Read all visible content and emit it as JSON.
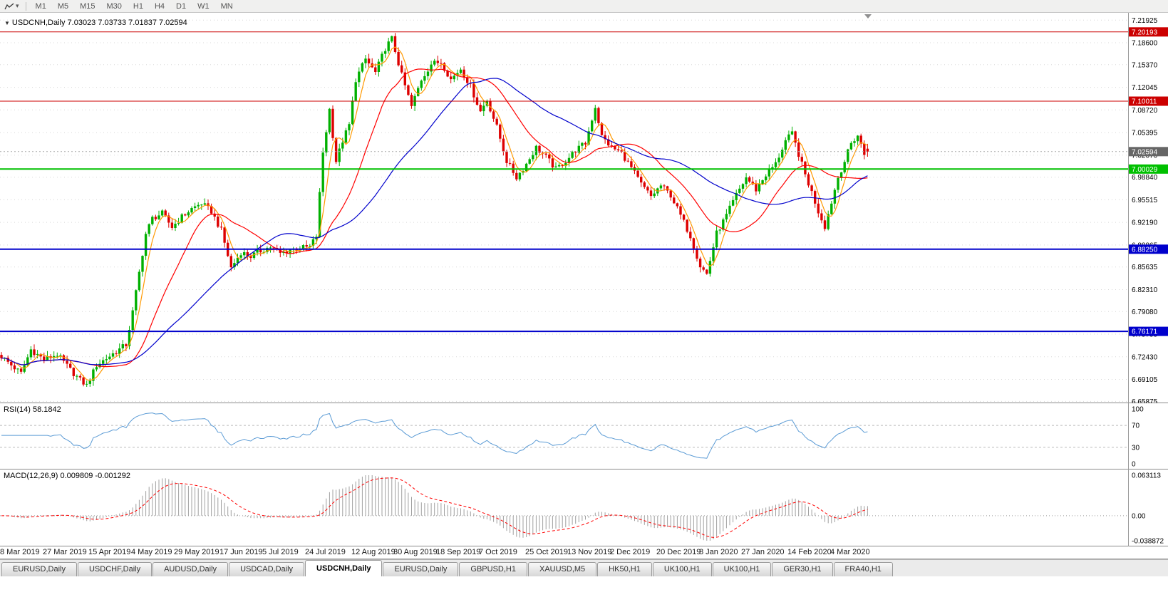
{
  "toolbar": {
    "timeframes": [
      "M1",
      "M5",
      "M15",
      "M30",
      "H1",
      "H4",
      "D1",
      "W1",
      "MN"
    ]
  },
  "chart": {
    "title": "USDCNH,Daily 7.03023 7.03733 7.01837 7.02594",
    "rsi_label": "RSI(14) 58.1842",
    "macd_label": "MACD(12,26,9) 0.009809 -0.001292"
  },
  "tabs": {
    "items": [
      "EURUSD,Daily",
      "USDCHF,Daily",
      "AUDUSD,Daily",
      "USDCAD,Daily",
      "USDCNH,Daily",
      "EURUSD,Daily",
      "GBPUSD,H1",
      "XAUUSD,M5",
      "HK50,H1",
      "UK100,H1",
      "UK100,H1",
      "GER30,H1",
      "FRA40,H1"
    ],
    "active_index": 4
  },
  "chart_data": {
    "type": "candlestick",
    "symbol": "USDCNH",
    "period": "Daily",
    "ohlc": {
      "open": 7.03023,
      "high": 7.03733,
      "low": 7.01837,
      "close": 7.02594
    },
    "bar_count": 265,
    "price_axis": {
      "top": 7.23,
      "bottom": 6.656,
      "labels": [
        "7.21925",
        "7.18600",
        "7.15370",
        "7.12045",
        "7.08720",
        "7.05395",
        "7.02070",
        "6.98840",
        "6.95515",
        "6.92190",
        "6.88865",
        "6.85635",
        "6.82310",
        "6.79080",
        "6.75755",
        "6.72430",
        "6.69105",
        "6.65875"
      ]
    },
    "hlines": [
      {
        "label": "7.20193",
        "value": 7.20193,
        "color": "#cc0000",
        "width": 1
      },
      {
        "label": "7.10011",
        "value": 7.10011,
        "color": "#cc0000",
        "width": 1
      },
      {
        "label": "7.00029",
        "value": 7.00029,
        "color": "#00c000",
        "width": 2
      },
      {
        "label": "6.88250",
        "value": 6.8825,
        "color": "#0000cc",
        "width": 2
      },
      {
        "label": "6.76171",
        "value": 6.76171,
        "color": "#0000cc",
        "width": 2
      }
    ],
    "current_price": {
      "label": "7.02594",
      "value": 7.02594,
      "badge_color": "#666666",
      "line_color": "#aaaaaa"
    },
    "x_labels": [
      "8 Mar 2019",
      "27 Mar 2019",
      "15 Apr 2019",
      "4 May 2019",
      "29 May 2019",
      "17 Jun 2019",
      "5 Jul 2019",
      "24 Jul 2019",
      "12 Aug 2019",
      "30 Aug 2019",
      "18 Sep 2019",
      "7 Oct 2019",
      "25 Oct 2019",
      "13 Nov 2019",
      "2 Dec 2019",
      "20 Dec 2019",
      "8 Jan 2020",
      "27 Jan 2020",
      "14 Feb 2020",
      "4 Mar 2020"
    ],
    "close_anchors": [
      [
        0,
        6.725
      ],
      [
        3,
        6.712
      ],
      [
        6,
        6.7
      ],
      [
        9,
        6.735
      ],
      [
        13,
        6.72
      ],
      [
        17,
        6.728
      ],
      [
        21,
        6.705
      ],
      [
        24,
        6.69
      ],
      [
        26,
        6.682
      ],
      [
        29,
        6.712
      ],
      [
        32,
        6.722
      ],
      [
        35,
        6.732
      ],
      [
        38,
        6.742
      ],
      [
        40,
        6.79
      ],
      [
        42,
        6.848
      ],
      [
        44,
        6.905
      ],
      [
        46,
        6.928
      ],
      [
        49,
        6.935
      ],
      [
        52,
        6.915
      ],
      [
        55,
        6.93
      ],
      [
        58,
        6.942
      ],
      [
        61,
        6.95
      ],
      [
        64,
        6.938
      ],
      [
        67,
        6.91
      ],
      [
        70,
        6.855
      ],
      [
        73,
        6.878
      ],
      [
        76,
        6.872
      ],
      [
        79,
        6.88
      ],
      [
        82,
        6.886
      ],
      [
        85,
        6.876
      ],
      [
        88,
        6.882
      ],
      [
        91,
        6.884
      ],
      [
        94,
        6.886
      ],
      [
        96,
        6.902
      ],
      [
        98,
        7.025
      ],
      [
        100,
        7.088
      ],
      [
        102,
        7.012
      ],
      [
        104,
        7.042
      ],
      [
        106,
        7.065
      ],
      [
        108,
        7.132
      ],
      [
        111,
        7.162
      ],
      [
        114,
        7.142
      ],
      [
        117,
        7.178
      ],
      [
        119,
        7.192
      ],
      [
        122,
        7.138
      ],
      [
        125,
        7.092
      ],
      [
        128,
        7.132
      ],
      [
        131,
        7.155
      ],
      [
        134,
        7.158
      ],
      [
        137,
        7.132
      ],
      [
        140,
        7.148
      ],
      [
        143,
        7.122
      ],
      [
        146,
        7.085
      ],
      [
        148,
        7.102
      ],
      [
        151,
        7.062
      ],
      [
        154,
        7.012
      ],
      [
        157,
        6.988
      ],
      [
        160,
        7.008
      ],
      [
        163,
        7.032
      ],
      [
        166,
        7.018
      ],
      [
        169,
        7.0
      ],
      [
        172,
        7.012
      ],
      [
        175,
        7.028
      ],
      [
        178,
        7.038
      ],
      [
        181,
        7.092
      ],
      [
        183,
        7.048
      ],
      [
        186,
        7.032
      ],
      [
        189,
        7.024
      ],
      [
        192,
        7.002
      ],
      [
        195,
        6.978
      ],
      [
        198,
        6.96
      ],
      [
        201,
        6.976
      ],
      [
        204,
        6.962
      ],
      [
        207,
        6.932
      ],
      [
        210,
        6.902
      ],
      [
        213,
        6.858
      ],
      [
        215,
        6.846
      ],
      [
        218,
        6.906
      ],
      [
        221,
        6.932
      ],
      [
        224,
        6.962
      ],
      [
        227,
        6.988
      ],
      [
        230,
        6.97
      ],
      [
        233,
        6.992
      ],
      [
        236,
        7.008
      ],
      [
        239,
        7.042
      ],
      [
        241,
        7.052
      ],
      [
        243,
        7.022
      ],
      [
        245,
        6.992
      ],
      [
        247,
        6.966
      ],
      [
        249,
        6.938
      ],
      [
        251,
        6.916
      ],
      [
        253,
        6.952
      ],
      [
        255,
        6.988
      ],
      [
        257,
        7.012
      ],
      [
        259,
        7.038
      ],
      [
        261,
        7.05
      ],
      [
        263,
        7.022
      ],
      [
        264,
        7.026
      ]
    ],
    "moving_averages": [
      {
        "name": "fast-ma",
        "period": 5,
        "color": "#ff9900"
      },
      {
        "name": "medium-ma",
        "period": 20,
        "color": "#ff0000"
      },
      {
        "name": "slow-ma",
        "period": 45,
        "color": "#0000cc"
      }
    ],
    "rsi": {
      "period": 14,
      "value": 58.1842,
      "axis_labels": [
        100,
        70,
        30,
        0
      ],
      "levels": [
        70,
        30
      ],
      "color": "#5b9bd5"
    },
    "macd": {
      "fast": 12,
      "slow": 26,
      "signal": 9,
      "main_value": 0.009809,
      "signal_value": -0.001292,
      "axis_labels": [
        {
          "text": "0.063113",
          "value": 0.063113
        },
        {
          "text": "0.00",
          "value": 0
        },
        {
          "text": "-0.038872",
          "value": -0.038872
        }
      ],
      "histogram_color": "#a0a0a0",
      "signal_color": "#ff0000"
    },
    "colors": {
      "up": "#00b000",
      "down": "#dd0000",
      "grid": "#d8d8d8",
      "axis_line": "#9a9a9a"
    }
  }
}
